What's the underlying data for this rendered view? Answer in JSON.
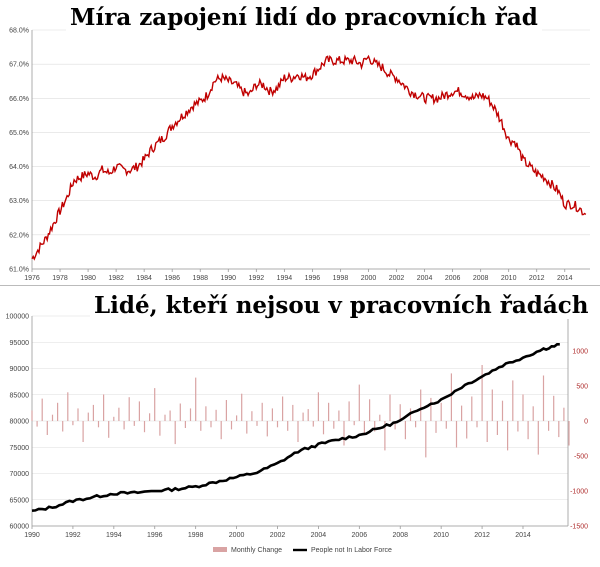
{
  "chart_data": [
    {
      "type": "line",
      "title": "Míra zapojení lidí do pracovních řad",
      "x_ticks": [
        "1976",
        "1978",
        "1980",
        "1982",
        "1984",
        "1986",
        "1988",
        "1990",
        "1992",
        "1994",
        "1996",
        "1998",
        "2000",
        "2002",
        "2004",
        "2006",
        "2008",
        "2010",
        "2012",
        "2014"
      ],
      "y_ticks": [
        "61.0%",
        "62.0%",
        "63.0%",
        "64.0%",
        "65.0%",
        "66.0%",
        "67.0%",
        "68.0%"
      ],
      "xlim": [
        1976,
        2015.8
      ],
      "ylim": [
        61.0,
        68.0
      ],
      "grid": true,
      "series": [
        {
          "color": "#c00000",
          "points": [
            [
              1976.0,
              61.3
            ],
            [
              1976.5,
              61.6
            ],
            [
              1977.0,
              61.9
            ],
            [
              1977.5,
              62.3
            ],
            [
              1978.0,
              62.7
            ],
            [
              1978.5,
              63.1
            ],
            [
              1979.0,
              63.6
            ],
            [
              1979.5,
              63.7
            ],
            [
              1980.0,
              63.8
            ],
            [
              1980.5,
              63.7
            ],
            [
              1981.0,
              63.9
            ],
            [
              1981.5,
              63.8
            ],
            [
              1982.0,
              64.0
            ],
            [
              1982.5,
              63.9
            ],
            [
              1983.0,
              63.9
            ],
            [
              1983.5,
              64.0
            ],
            [
              1984.0,
              64.2
            ],
            [
              1984.5,
              64.5
            ],
            [
              1985.0,
              64.7
            ],
            [
              1985.5,
              64.9
            ],
            [
              1986.0,
              65.2
            ],
            [
              1986.5,
              65.4
            ],
            [
              1987.0,
              65.6
            ],
            [
              1987.5,
              65.8
            ],
            [
              1988.0,
              65.9
            ],
            [
              1988.5,
              66.1
            ],
            [
              1989.0,
              66.5
            ],
            [
              1989.5,
              66.6
            ],
            [
              1990.0,
              66.5
            ],
            [
              1990.5,
              66.4
            ],
            [
              1991.0,
              66.2
            ],
            [
              1991.5,
              66.1
            ],
            [
              1992.0,
              66.4
            ],
            [
              1992.5,
              66.4
            ],
            [
              1993.0,
              66.2
            ],
            [
              1993.5,
              66.3
            ],
            [
              1994.0,
              66.6
            ],
            [
              1994.5,
              66.6
            ],
            [
              1995.0,
              66.7
            ],
            [
              1995.5,
              66.6
            ],
            [
              1996.0,
              66.7
            ],
            [
              1996.5,
              66.9
            ],
            [
              1997.0,
              67.1
            ],
            [
              1997.5,
              67.1
            ],
            [
              1998.0,
              67.1
            ],
            [
              1998.5,
              67.1
            ],
            [
              1999.0,
              67.1
            ],
            [
              1999.5,
              67.0
            ],
            [
              2000.0,
              67.2
            ],
            [
              2000.5,
              67.0
            ],
            [
              2001.0,
              66.9
            ],
            [
              2001.5,
              66.7
            ],
            [
              2002.0,
              66.6
            ],
            [
              2002.5,
              66.4
            ],
            [
              2003.0,
              66.2
            ],
            [
              2003.5,
              66.1
            ],
            [
              2004.0,
              66.0
            ],
            [
              2004.5,
              66.0
            ],
            [
              2005.0,
              66.0
            ],
            [
              2005.5,
              66.1
            ],
            [
              2006.0,
              66.2
            ],
            [
              2006.5,
              66.2
            ],
            [
              2007.0,
              66.1
            ],
            [
              2007.5,
              66.0
            ],
            [
              2008.0,
              66.1
            ],
            [
              2008.5,
              66.0
            ],
            [
              2009.0,
              65.7
            ],
            [
              2009.5,
              65.3
            ],
            [
              2010.0,
              64.8
            ],
            [
              2010.5,
              64.7
            ],
            [
              2011.0,
              64.2
            ],
            [
              2011.5,
              64.0
            ],
            [
              2012.0,
              63.8
            ],
            [
              2012.5,
              63.7
            ],
            [
              2013.0,
              63.5
            ],
            [
              2013.5,
              63.3
            ],
            [
              2014.0,
              62.9
            ],
            [
              2014.5,
              62.9
            ],
            [
              2015.0,
              62.8
            ],
            [
              2015.5,
              62.6
            ]
          ]
        }
      ]
    },
    {
      "type": "bar+line",
      "title": "Lidé, kteří nejsou v pracovních řadách",
      "x_ticks": [
        "1990",
        "1992",
        "1994",
        "1996",
        "1998",
        "2000",
        "2002",
        "2004",
        "2006",
        "2008",
        "2010",
        "2012",
        "2014"
      ],
      "y_left_ticks": [
        "60000",
        "65000",
        "70000",
        "75000",
        "80000",
        "85000",
        "90000",
        "95000",
        "100000"
      ],
      "y_right_ticks": [
        "-1500",
        "-1000",
        "-500",
        "0",
        "500",
        "1000",
        "1500"
      ],
      "xlim": [
        1990,
        2016.2
      ],
      "ylim_left": [
        60000,
        100000
      ],
      "ylim_right": [
        -1500,
        1500
      ],
      "legend": {
        "position": "bottom-center",
        "items": [
          {
            "label": "Monthly Change",
            "color": "#d9a3a3"
          },
          {
            "label": "People not In Labor Force",
            "color": "#000000"
          }
        ]
      },
      "line_series": {
        "name": "People not In Labor Force",
        "color": "#000000",
        "axis": "left",
        "points": [
          [
            1990.0,
            62800
          ],
          [
            1991.0,
            63600
          ],
          [
            1992.0,
            64800
          ],
          [
            1993.0,
            65500
          ],
          [
            1994.0,
            66200
          ],
          [
            1995.0,
            66300
          ],
          [
            1996.0,
            66700
          ],
          [
            1997.0,
            67000
          ],
          [
            1998.0,
            67500
          ],
          [
            1999.0,
            68400
          ],
          [
            2000.0,
            69300
          ],
          [
            2001.0,
            70200
          ],
          [
            2002.0,
            71900
          ],
          [
            2003.0,
            74200
          ],
          [
            2004.0,
            75500
          ],
          [
            2005.0,
            76500
          ],
          [
            2006.0,
            77300
          ],
          [
            2007.0,
            78700
          ],
          [
            2008.0,
            80000
          ],
          [
            2009.0,
            82500
          ],
          [
            2010.0,
            84000
          ],
          [
            2011.0,
            86500
          ],
          [
            2012.0,
            88500
          ],
          [
            2013.0,
            90600
          ],
          [
            2014.0,
            92100
          ],
          [
            2015.0,
            93700
          ],
          [
            2015.8,
            94600
          ]
        ]
      },
      "bar_series": {
        "name": "Monthly Change",
        "color": "#d9a3a3",
        "axis": "right",
        "start": 1990.0,
        "step": 0.25,
        "values": [
          150,
          -80,
          320,
          -200,
          90,
          260,
          -150,
          410,
          -60,
          180,
          -300,
          120,
          230,
          -90,
          380,
          -240,
          60,
          190,
          -120,
          340,
          -70,
          280,
          -160,
          110,
          470,
          -210,
          90,
          150,
          -330,
          250,
          -100,
          180,
          620,
          -140,
          210,
          -90,
          160,
          -260,
          300,
          -120,
          80,
          390,
          -180,
          140,
          -70,
          260,
          -220,
          180,
          -90,
          350,
          -140,
          230,
          -300,
          120,
          170,
          -80,
          410,
          -190,
          260,
          -110,
          150,
          -350,
          280,
          -60,
          520,
          -200,
          310,
          -150,
          90,
          -420,
          380,
          -120,
          240,
          -260,
          180,
          -90,
          450,
          -520,
          330,
          -170,
          260,
          -110,
          680,
          -380,
          220,
          -250,
          350,
          -90,
          800,
          -300,
          450,
          -200,
          290,
          -420,
          580,
          -150,
          380,
          -260,
          210,
          -480,
          650,
          -140,
          360,
          -230,
          190,
          -350
        ]
      }
    }
  ]
}
